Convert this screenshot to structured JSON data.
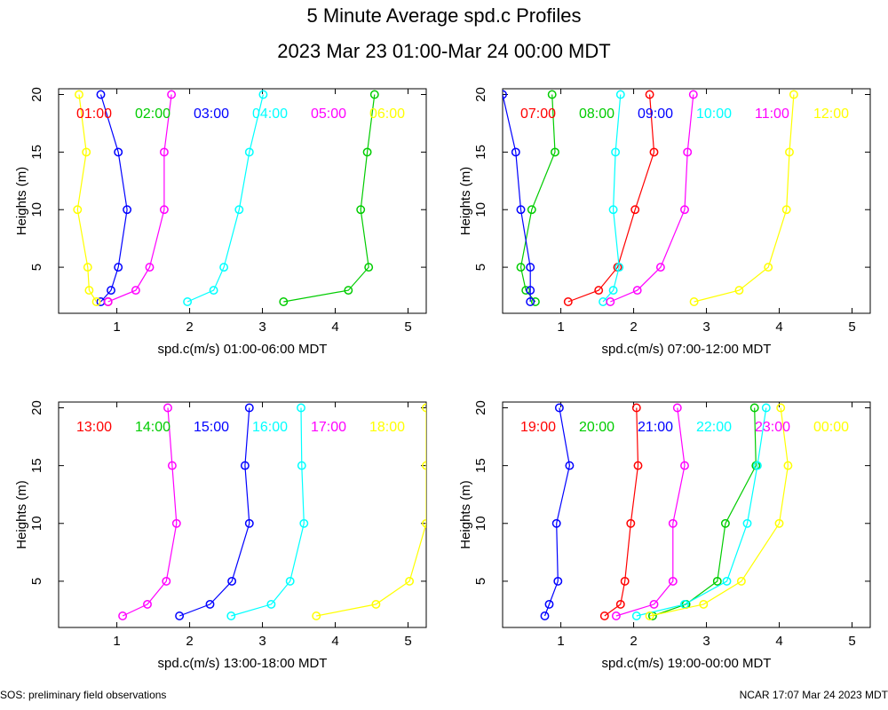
{
  "title": "5 Minute Average spd.c Profiles",
  "subtitle": "2023 Mar 23 01:00-Mar 24 00:00 MDT",
  "footer_left": "SOS: preliminary field observations",
  "footer_right": "NCAR 17:07 Mar 24 2023 MDT",
  "chart_data": [
    {
      "type": "line",
      "xlabel": "spd.c(m/s) 01:00-06:00 MDT",
      "ylabel": "Heights (m)",
      "xlim": [
        0.2,
        5.25
      ],
      "ylim": [
        1,
        20.5
      ],
      "xticks": [
        1,
        2,
        3,
        4,
        5
      ],
      "yticks": [
        5,
        10,
        15,
        20
      ],
      "heights": [
        2,
        3,
        5,
        10,
        15,
        20
      ],
      "series": [
        {
          "name": "01:00",
          "color": "#ff0000",
          "x": [
            0.88,
            null,
            null,
            null,
            null,
            null
          ]
        },
        {
          "name": "02:00",
          "color": "#00cc00",
          "x": [
            3.29,
            4.18,
            4.46,
            4.35,
            4.44,
            4.54
          ]
        },
        {
          "name": "03:00",
          "color": "#0000ff",
          "x": [
            0.78,
            0.92,
            1.02,
            1.14,
            1.02,
            0.78
          ]
        },
        {
          "name": "04:00",
          "color": "#00ffff",
          "x": [
            1.97,
            2.33,
            2.47,
            2.68,
            2.82,
            3.01
          ]
        },
        {
          "name": "05:00",
          "color": "#ff00ff",
          "x": [
            0.88,
            1.26,
            1.45,
            1.65,
            1.65,
            1.75
          ]
        },
        {
          "name": "06:00",
          "color": "#ffff00",
          "x": [
            0.72,
            0.62,
            0.6,
            0.46,
            0.58,
            0.48
          ]
        }
      ]
    },
    {
      "type": "line",
      "xlabel": "spd.c(m/s) 07:00-12:00 MDT",
      "ylabel": "Heights (m)",
      "xlim": [
        0.2,
        5.25
      ],
      "ylim": [
        1,
        20.5
      ],
      "xticks": [
        1,
        2,
        3,
        4,
        5
      ],
      "yticks": [
        5,
        10,
        15,
        20
      ],
      "heights": [
        2,
        3,
        5,
        10,
        15,
        20
      ],
      "series": [
        {
          "name": "07:00",
          "color": "#ff0000",
          "x": [
            1.1,
            1.52,
            1.78,
            2.02,
            2.28,
            2.22
          ]
        },
        {
          "name": "08:00",
          "color": "#00cc00",
          "x": [
            0.65,
            0.52,
            0.45,
            0.6,
            0.92,
            0.88
          ]
        },
        {
          "name": "09:00",
          "color": "#0000ff",
          "x": [
            0.58,
            0.58,
            0.58,
            0.45,
            0.38,
            0.2
          ]
        },
        {
          "name": "10:00",
          "color": "#00ffff",
          "x": [
            1.58,
            1.72,
            1.8,
            1.72,
            1.75,
            1.82
          ]
        },
        {
          "name": "11:00",
          "color": "#ff00ff",
          "x": [
            1.68,
            2.05,
            2.37,
            2.7,
            2.74,
            2.82
          ]
        },
        {
          "name": "12:00",
          "color": "#ffff00",
          "x": [
            2.83,
            3.45,
            3.85,
            4.1,
            4.14,
            4.2
          ]
        }
      ]
    },
    {
      "type": "line",
      "xlabel": "spd.c(m/s) 13:00-18:00 MDT",
      "ylabel": "Heights (m)",
      "xlim": [
        0.2,
        5.25
      ],
      "ylim": [
        1,
        20.5
      ],
      "xticks": [
        1,
        2,
        3,
        4,
        5
      ],
      "yticks": [
        5,
        10,
        15,
        20
      ],
      "heights": [
        2,
        3,
        5,
        10,
        15,
        20
      ],
      "series": [
        {
          "name": "13:00",
          "color": "#ff0000",
          "x": [
            null,
            null,
            null,
            null,
            null,
            null
          ]
        },
        {
          "name": "14:00",
          "color": "#00cc00",
          "x": [
            null,
            null,
            null,
            null,
            null,
            null
          ]
        },
        {
          "name": "15:00",
          "color": "#0000ff",
          "x": [
            1.86,
            2.28,
            2.58,
            2.82,
            2.76,
            2.82
          ]
        },
        {
          "name": "16:00",
          "color": "#00ffff",
          "x": [
            2.57,
            3.12,
            3.38,
            3.57,
            3.54,
            3.53
          ]
        },
        {
          "name": "17:00",
          "color": "#ff00ff",
          "x": [
            1.08,
            1.42,
            1.68,
            1.82,
            1.76,
            1.7
          ]
        },
        {
          "name": "18:00",
          "color": "#ffff00",
          "x": [
            3.74,
            4.56,
            5.02,
            5.25,
            5.25,
            5.25
          ]
        }
      ]
    },
    {
      "type": "line",
      "xlabel": "spd.c(m/s) 19:00-00:00 MDT",
      "ylabel": "Heights (m)",
      "xlim": [
        0.2,
        5.25
      ],
      "ylim": [
        1,
        20.5
      ],
      "xticks": [
        1,
        2,
        3,
        4,
        5
      ],
      "yticks": [
        5,
        10,
        15,
        20
      ],
      "heights": [
        2,
        3,
        5,
        10,
        15,
        20
      ],
      "series": [
        {
          "name": "19:00",
          "color": "#ff0000",
          "x": [
            1.6,
            1.82,
            1.88,
            1.96,
            2.06,
            2.04
          ]
        },
        {
          "name": "20:00",
          "color": "#00cc00",
          "x": [
            2.26,
            2.72,
            3.15,
            3.26,
            3.68,
            3.66
          ]
        },
        {
          "name": "21:00",
          "color": "#0000ff",
          "x": [
            0.78,
            0.84,
            0.96,
            0.94,
            1.12,
            0.98
          ]
        },
        {
          "name": "22:00",
          "color": "#00ffff",
          "x": [
            2.04,
            2.7,
            3.28,
            3.56,
            3.7,
            3.82
          ]
        },
        {
          "name": "23:00",
          "color": "#ff00ff",
          "x": [
            1.76,
            2.28,
            2.54,
            2.54,
            2.7,
            2.6
          ]
        },
        {
          "name": "00:00",
          "color": "#ffff00",
          "x": [
            2.22,
            2.96,
            3.48,
            4.0,
            4.12,
            4.02
          ]
        }
      ]
    }
  ]
}
